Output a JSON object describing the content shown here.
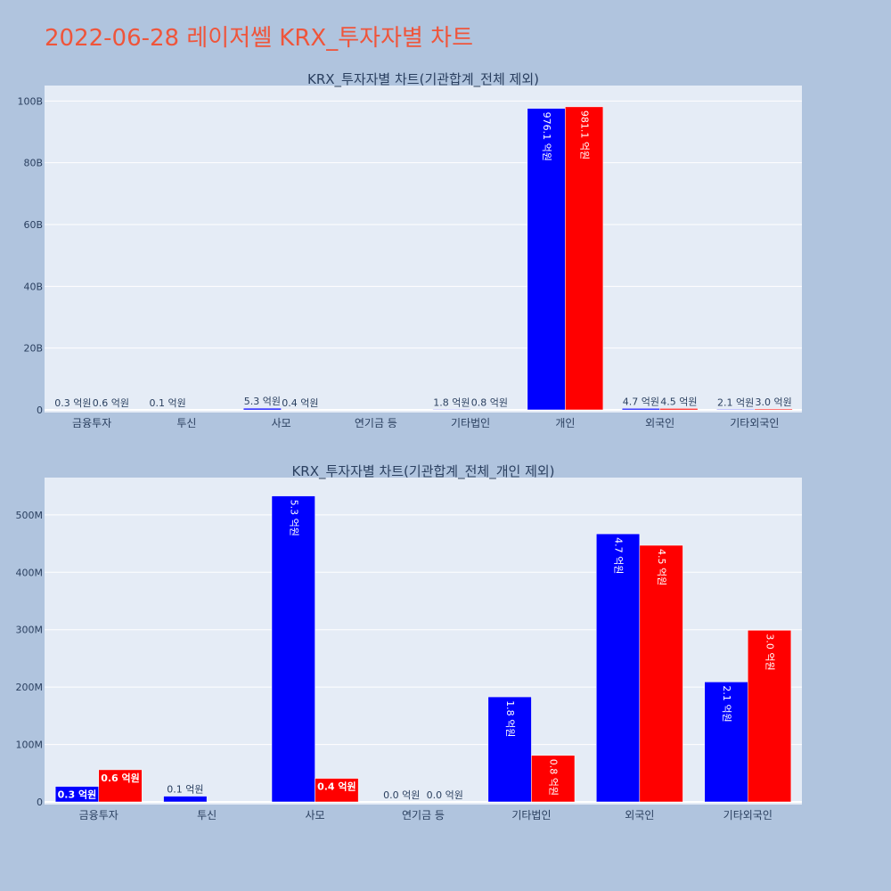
{
  "page": {
    "title": "2022-06-28 레이저쎌 KRX_투자자별 차트"
  },
  "colors": {
    "background": "#b0c4de",
    "plot_bg": "#e5ecf6",
    "title": "#ef553b",
    "series_buy": "#0000ff",
    "series_sell": "#ff0000",
    "text": "#2a3f5f"
  },
  "chart_data": [
    {
      "type": "bar",
      "title": "KRX_투자자별 차트(기관합계_전체 제외)",
      "categories": [
        "금융투자",
        "투신",
        "사모",
        "연기금 등",
        "기타법인",
        "개인",
        "외국인",
        "기타외국인"
      ],
      "ylim": [
        0,
        105000000000
      ],
      "y_ticks": [
        0,
        20000000000,
        40000000000,
        60000000000,
        80000000000,
        100000000000
      ],
      "y_tick_labels": [
        "0",
        "20B",
        "40B",
        "60B",
        "80B",
        "100B"
      ],
      "series": [
        {
          "values": [
            30000000,
            10000000,
            530000000,
            0,
            180000000,
            97610000000,
            470000000,
            210000000
          ],
          "labels": [
            "0.3 억원",
            "0.1 억원",
            "5.3 억원",
            "",
            "1.8 억원",
            "976.1 억원",
            "4.7 억원",
            "2.1 억원"
          ]
        },
        {
          "values": [
            60000000,
            0,
            40000000,
            0,
            80000000,
            98110000000,
            450000000,
            300000000
          ],
          "labels": [
            "0.6 억원",
            "",
            "0.4 억원",
            "",
            "0.8 억원",
            "981.1 억원",
            "4.5 억원",
            "3.0 억원"
          ]
        }
      ]
    },
    {
      "type": "bar",
      "title": "KRX_투자자별 차트(기관합계_전체_개인 제외)",
      "categories": [
        "금융투자",
        "투신",
        "사모",
        "연기금 등",
        "기타법인",
        "외국인",
        "기타외국인"
      ],
      "ylim": [
        0,
        565000000
      ],
      "y_ticks": [
        0,
        100000000,
        200000000,
        300000000,
        400000000,
        500000000
      ],
      "y_tick_labels": [
        "0",
        "100M",
        "200M",
        "300M",
        "400M",
        "500M"
      ],
      "series": [
        {
          "values": [
            27000000,
            10000000,
            533000000,
            0,
            183000000,
            467000000,
            209000000
          ],
          "labels": [
            "0.3 억원",
            "0.1 억원",
            "5.3 억원",
            "0.0 억원",
            "1.8 억원",
            "4.7 억원",
            "2.1 억원"
          ]
        },
        {
          "values": [
            56000000,
            0,
            41000000,
            0,
            81000000,
            447000000,
            299000000
          ],
          "labels": [
            "0.6 억원",
            "",
            "0.4 억원",
            "0.0 억원",
            "0.8 억원",
            "4.5 억원",
            "3.0 억원"
          ]
        }
      ]
    }
  ]
}
